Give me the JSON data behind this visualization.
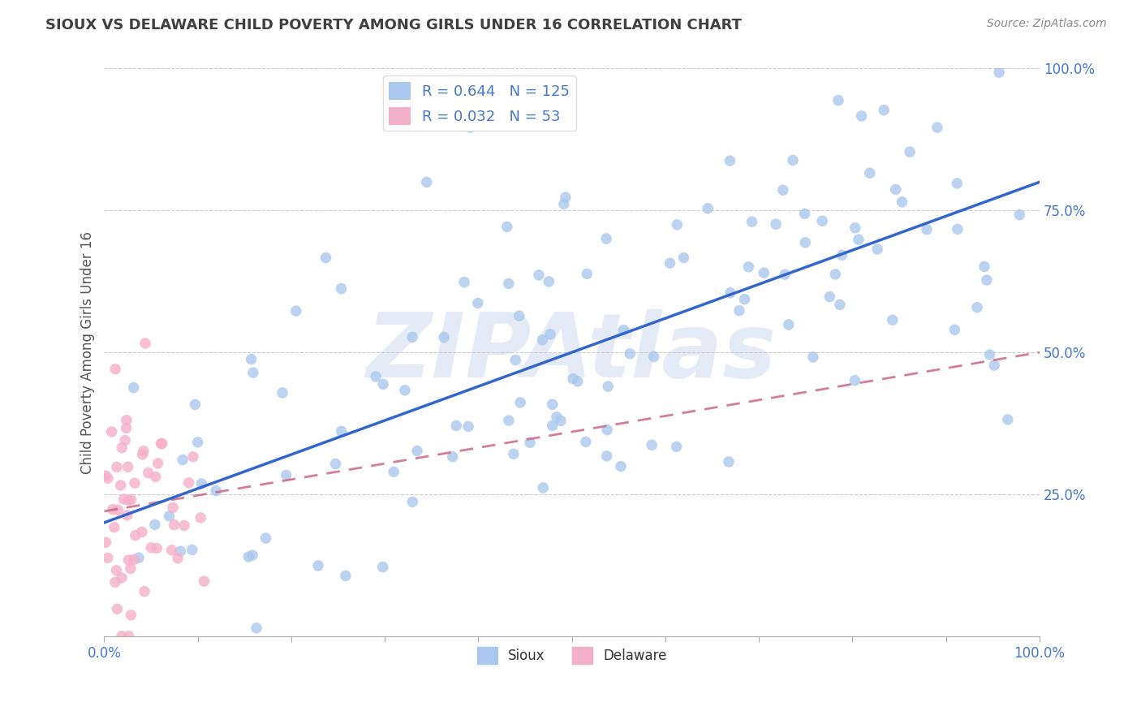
{
  "title": "SIOUX VS DELAWARE CHILD POVERTY AMONG GIRLS UNDER 16 CORRELATION CHART",
  "source": "Source: ZipAtlas.com",
  "ylabel": "Child Poverty Among Girls Under 16",
  "watermark": "ZIPAtlas",
  "xlim": [
    0.0,
    1.0
  ],
  "ylim": [
    0.0,
    1.0
  ],
  "sioux_R": 0.644,
  "sioux_N": 125,
  "delaware_R": 0.032,
  "delaware_N": 53,
  "sioux_color": "#aac8ee",
  "sioux_line_color": "#3366cc",
  "delaware_color": "#f4b0c8",
  "delaware_line_color": "#cc6688",
  "background_color": "#ffffff",
  "grid_color": "#cccccc",
  "title_color": "#404040",
  "axis_label_color": "#555555",
  "tick_color": "#4477cc",
  "blue_line_intercept": 0.2,
  "blue_line_slope": 0.6,
  "pink_line_intercept": 0.22,
  "pink_line_slope": 0.28
}
